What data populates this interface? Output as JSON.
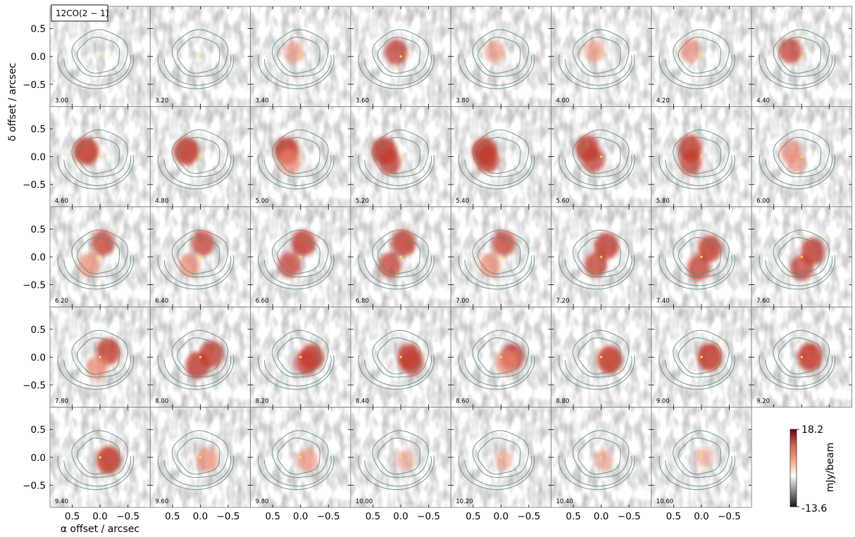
{
  "chart_data": {
    "type": "heatmap",
    "description_kind": "channel-maps",
    "line_label": "12CO(2 − 1)",
    "xlabel": "α offset / arcsec",
    "ylabel": "δ offset / arcsec",
    "xlim": [
      0.9,
      -0.9
    ],
    "ylim": [
      -0.9,
      0.9
    ],
    "xticks": [
      0.5,
      0.0,
      -0.5
    ],
    "xtick_labels": [
      "0.5",
      "0.0",
      "−0.5"
    ],
    "yticks": [
      0.5,
      0.0,
      -0.5
    ],
    "ytick_labels": [
      "0.5",
      "0.0",
      "−0.5"
    ],
    "grid": false,
    "colorbar": {
      "label": "mJy/beam",
      "min": -13.6,
      "max": 18.2,
      "min_label": "-13.6",
      "max_label": "18.2",
      "colors": [
        "#1a1a1a",
        "#8a8a8a",
        "#ffffff",
        "#f4a582",
        "#d6604d",
        "#67001f"
      ]
    },
    "channels": [
      {
        "velocity": "3.00",
        "emission": [
          [
            0.0,
            0.0,
            0.0
          ]
        ]
      },
      {
        "velocity": "3.20",
        "emission": [
          [
            0.0,
            0.0,
            0.0
          ]
        ]
      },
      {
        "velocity": "3.40",
        "emission": [
          [
            0.12,
            0.08,
            0.5
          ]
        ]
      },
      {
        "velocity": "3.60",
        "emission": [
          [
            0.08,
            0.08,
            0.8
          ]
        ]
      },
      {
        "velocity": "3.80",
        "emission": [
          [
            0.12,
            0.08,
            0.5
          ]
        ]
      },
      {
        "velocity": "4.00",
        "emission": [
          [
            0.12,
            0.1,
            0.5
          ]
        ]
      },
      {
        "velocity": "4.20",
        "emission": [
          [
            0.2,
            0.1,
            0.6
          ]
        ]
      },
      {
        "velocity": "4.40",
        "emission": [
          [
            0.2,
            0.1,
            0.8
          ]
        ]
      },
      {
        "velocity": "4.60",
        "emission": [
          [
            0.25,
            0.1,
            1.0
          ]
        ]
      },
      {
        "velocity": "4.80",
        "emission": [
          [
            0.25,
            0.1,
            1.0
          ]
        ]
      },
      {
        "velocity": "5.00",
        "emission": [
          [
            0.25,
            0.1,
            1.0
          ],
          [
            0.2,
            -0.1,
            0.7
          ]
        ]
      },
      {
        "velocity": "5.20",
        "emission": [
          [
            0.3,
            0.1,
            1.0
          ],
          [
            0.2,
            -0.1,
            0.8
          ]
        ]
      },
      {
        "velocity": "5.40",
        "emission": [
          [
            0.3,
            0.1,
            1.0
          ],
          [
            0.25,
            -0.05,
            0.9
          ]
        ]
      },
      {
        "velocity": "5.60",
        "emission": [
          [
            0.25,
            0.15,
            0.9
          ],
          [
            0.15,
            -0.05,
            0.8
          ]
        ]
      },
      {
        "velocity": "5.80",
        "emission": [
          [
            0.2,
            0.15,
            0.9
          ],
          [
            0.2,
            -0.1,
            0.8
          ]
        ]
      },
      {
        "velocity": "6.00",
        "emission": [
          [
            0.2,
            0.1,
            0.6
          ],
          [
            0.1,
            -0.1,
            0.5
          ]
        ]
      },
      {
        "velocity": "6.20",
        "emission": [
          [
            -0.05,
            0.25,
            0.8
          ],
          [
            0.2,
            -0.15,
            0.7
          ]
        ]
      },
      {
        "velocity": "6.40",
        "emission": [
          [
            -0.05,
            0.25,
            0.8
          ],
          [
            0.2,
            -0.15,
            0.7
          ]
        ]
      },
      {
        "velocity": "6.60",
        "emission": [
          [
            -0.05,
            0.25,
            0.9
          ],
          [
            0.2,
            -0.15,
            0.8
          ]
        ]
      },
      {
        "velocity": "6.80",
        "emission": [
          [
            -0.05,
            0.25,
            0.9
          ],
          [
            0.2,
            -0.15,
            0.8
          ]
        ]
      },
      {
        "velocity": "7.00",
        "emission": [
          [
            -0.05,
            0.25,
            0.8
          ],
          [
            0.2,
            -0.15,
            0.7
          ]
        ]
      },
      {
        "velocity": "7.20",
        "emission": [
          [
            -0.1,
            0.2,
            0.9
          ],
          [
            0.1,
            -0.15,
            0.8
          ]
        ]
      },
      {
        "velocity": "7.40",
        "emission": [
          [
            -0.15,
            0.15,
            0.9
          ],
          [
            0.05,
            -0.2,
            0.8
          ]
        ]
      },
      {
        "velocity": "7.60",
        "emission": [
          [
            -0.2,
            0.1,
            0.9
          ],
          [
            0.0,
            -0.2,
            0.8
          ]
        ]
      },
      {
        "velocity": "7.80",
        "emission": [
          [
            -0.15,
            0.1,
            0.9
          ],
          [
            0.05,
            -0.2,
            0.7
          ]
        ]
      },
      {
        "velocity": "8.00",
        "emission": [
          [
            -0.2,
            0.05,
            0.9
          ],
          [
            0.05,
            -0.15,
            0.9
          ]
        ]
      },
      {
        "velocity": "8.20",
        "emission": [
          [
            -0.2,
            0.0,
            0.9
          ],
          [
            -0.1,
            -0.1,
            0.8
          ]
        ]
      },
      {
        "velocity": "8.40",
        "emission": [
          [
            -0.15,
            0.0,
            0.9
          ],
          [
            -0.2,
            -0.1,
            0.8
          ]
        ]
      },
      {
        "velocity": "8.60",
        "emission": [
          [
            -0.2,
            0.0,
            0.9
          ],
          [
            -0.1,
            -0.1,
            0.7
          ]
        ]
      },
      {
        "velocity": "8.80",
        "emission": [
          [
            -0.15,
            -0.05,
            1.0
          ]
        ]
      },
      {
        "velocity": "9.00",
        "emission": [
          [
            -0.15,
            0.0,
            1.0
          ]
        ]
      },
      {
        "velocity": "9.20",
        "emission": [
          [
            -0.15,
            0.0,
            1.0
          ]
        ]
      },
      {
        "velocity": "9.40",
        "emission": [
          [
            -0.15,
            -0.05,
            1.0
          ]
        ]
      },
      {
        "velocity": "9.60",
        "emission": [
          [
            -0.12,
            -0.05,
            0.7
          ]
        ]
      },
      {
        "velocity": "9.80",
        "emission": [
          [
            -0.12,
            -0.05,
            0.6
          ]
        ]
      },
      {
        "velocity": "10.00",
        "emission": [
          [
            -0.08,
            -0.05,
            0.4
          ]
        ]
      },
      {
        "velocity": "10.20",
        "emission": [
          [
            -0.05,
            -0.05,
            0.3
          ]
        ]
      },
      {
        "velocity": "10.40",
        "emission": [
          [
            -0.05,
            -0.05,
            0.4
          ]
        ]
      },
      {
        "velocity": "10.60",
        "emission": [
          [
            -0.05,
            0.0,
            0.3
          ]
        ]
      }
    ]
  }
}
